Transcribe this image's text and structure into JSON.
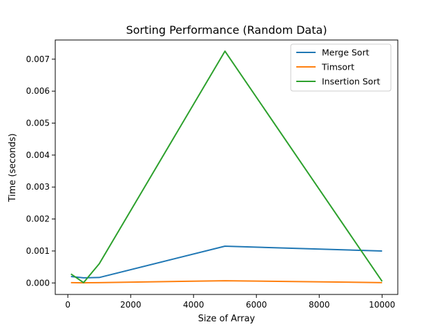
{
  "chart_data": {
    "type": "line",
    "title": "Sorting Performance (Random Data)",
    "xlabel": "Size of Array",
    "ylabel": "Time (seconds)",
    "xlim": [
      -400,
      10500
    ],
    "ylim": [
      -0.00036,
      0.0076
    ],
    "x_ticks": [
      0,
      2000,
      4000,
      6000,
      8000,
      10000
    ],
    "x_tick_labels": [
      "0",
      "2000",
      "4000",
      "6000",
      "8000",
      "10000"
    ],
    "y_ticks": [
      0.0,
      0.001,
      0.002,
      0.003,
      0.004,
      0.005,
      0.006,
      0.007
    ],
    "y_tick_labels": [
      "0.000",
      "0.001",
      "0.002",
      "0.003",
      "0.004",
      "0.005",
      "0.006",
      "0.007"
    ],
    "grid": false,
    "legend_position": "top-right",
    "x": [
      100,
      500,
      1000,
      5000,
      10000
    ],
    "series": [
      {
        "name": "Merge Sort",
        "color": "#1f77b4",
        "values": [
          0.0002,
          0.00016,
          0.00017,
          0.00115,
          0.001
        ]
      },
      {
        "name": "Timsort",
        "color": "#ff7f0e",
        "values": [
          1e-05,
          5e-06,
          1e-05,
          7e-05,
          1e-05
        ]
      },
      {
        "name": "Insertion Sort",
        "color": "#2ca02c",
        "values": [
          0.00028,
          1e-05,
          0.0006,
          0.00725,
          5e-05
        ]
      }
    ]
  }
}
